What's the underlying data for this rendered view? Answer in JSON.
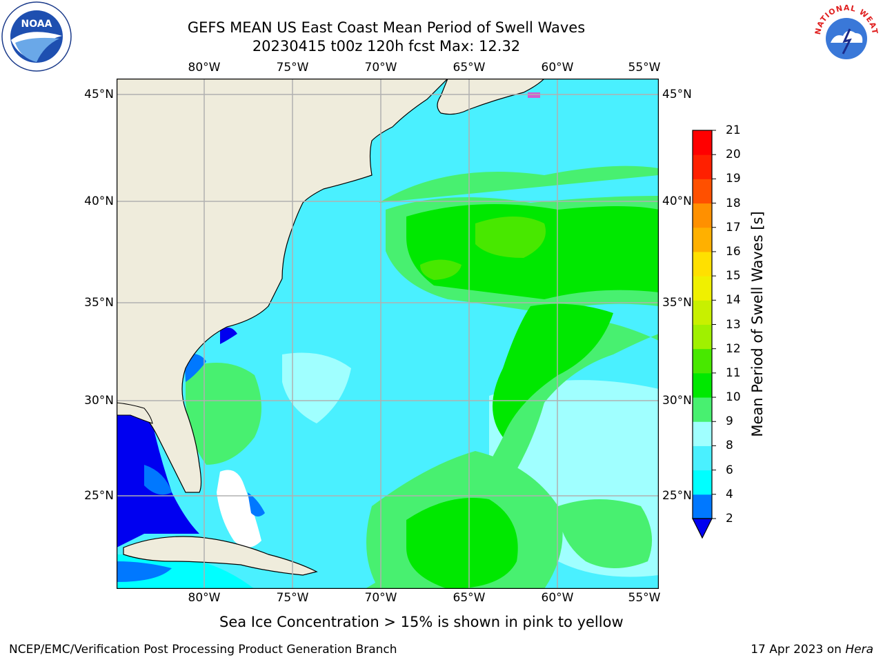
{
  "header": {
    "title_line1": "GEFS MEAN US East Coast Mean Period of Swell Waves",
    "title_line2": "20230415 t00z 120h fcst   Max: 12.32"
  },
  "map": {
    "lon_labels": [
      "80°W",
      "75°W",
      "70°W",
      "65°W",
      "60°W",
      "55°W"
    ],
    "lat_labels": [
      "45°N",
      "40°N",
      "35°N",
      "30°N",
      "25°N"
    ],
    "land_color": "#efecdc",
    "grid_color": "#b0b0b0"
  },
  "colorbar": {
    "title": "Mean Period of Swell Waves [s]",
    "ticks": [
      "2",
      "4",
      "6",
      "8",
      "9",
      "10",
      "11",
      "12",
      "13",
      "14",
      "15",
      "16",
      "17",
      "18",
      "19",
      "20",
      "21"
    ],
    "colors": [
      "#0000f0",
      "#0078ff",
      "#00ffff",
      "#4af0ff",
      "#a0ffff",
      "#48f070",
      "#00e800",
      "#48e800",
      "#a0f000",
      "#c8f000",
      "#f0f000",
      "#ffe000",
      "#ffb000",
      "#ff9000",
      "#ff5000",
      "#ff2000",
      "#ff0000"
    ]
  },
  "note": "Sea Ice Concentration > 15% is shown in pink to yellow",
  "footer": {
    "left": "NCEP/EMC/Verification Post Processing Product Generation Branch",
    "date": "17 Apr 2023 on ",
    "machine": "Hera"
  },
  "logos": {
    "noaa_text": "NOAA",
    "nws_text": "NATIONAL WEATHER SERVICE"
  }
}
